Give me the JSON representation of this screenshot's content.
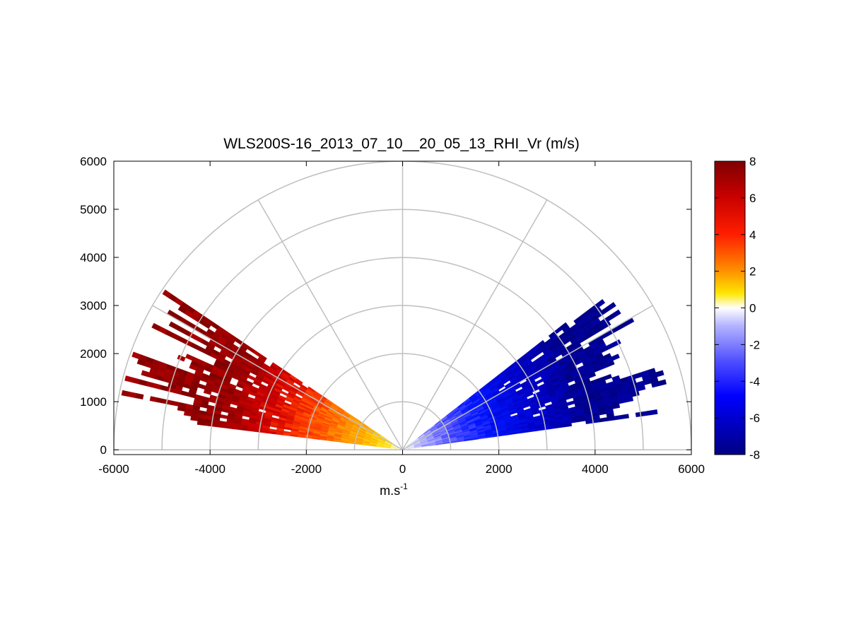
{
  "chart_data": {
    "type": "heatmap",
    "subtype": "polar-rhi-sector",
    "title": "WLS200S-16_2013_07_10__20_05_13_RHI_Vr (m/s)",
    "xlabel": "m.s",
    "xlabel_superscript": "-1",
    "ylabel": "",
    "xlim": [
      -6000,
      6000
    ],
    "ylim": [
      -100,
      6000
    ],
    "xticks": [
      "-6000",
      "-4000",
      "-2000",
      "0",
      "2000",
      "4000",
      "6000"
    ],
    "xtick_values": [
      -6000,
      -4000,
      -2000,
      0,
      2000,
      4000,
      6000
    ],
    "yticks": [
      "0",
      "1000",
      "2000",
      "3000",
      "4000",
      "5000",
      "6000"
    ],
    "ytick_values": [
      0,
      1000,
      2000,
      3000,
      4000,
      5000,
      6000
    ],
    "polar_grid": {
      "ranges": [
        1000,
        2000,
        3000,
        4000,
        5000,
        6000
      ],
      "angles_deg": [
        0,
        30,
        60,
        90,
        120,
        150,
        180
      ]
    },
    "colorbar": {
      "range": [
        -8,
        8
      ],
      "ticks": [
        "8",
        "6",
        "4",
        "2",
        "0",
        "-2",
        "-4",
        "-6",
        "-8"
      ],
      "tick_values": [
        8,
        6,
        4,
        2,
        0,
        -2,
        -4,
        -6,
        -8
      ]
    },
    "sectors": [
      {
        "side": "left",
        "elev_start_deg": 7,
        "elev_end_deg": 34,
        "range_max_m": 5900,
        "velocity_near": 0,
        "velocity_far": 7.5
      },
      {
        "side": "right",
        "elev_start_deg": 8,
        "elev_end_deg": 38,
        "range_max_m": 5600,
        "velocity_near": 0,
        "velocity_far": -7.5
      }
    ]
  }
}
